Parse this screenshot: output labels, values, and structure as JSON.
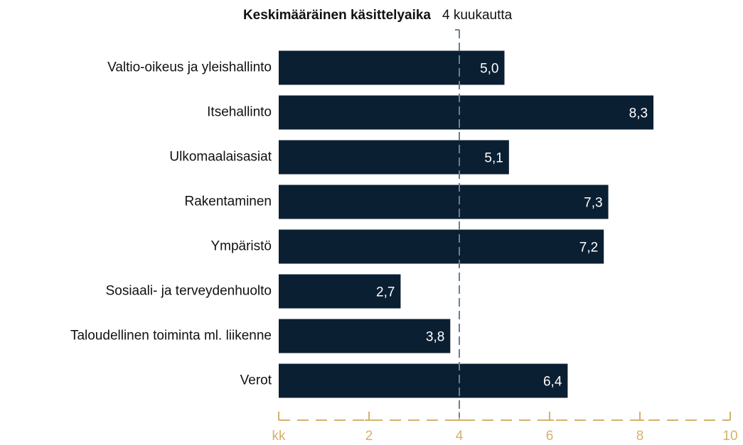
{
  "chart_data": {
    "type": "bar",
    "orientation": "horizontal",
    "categories": [
      "Valtio-oikeus ja yleishallinto",
      "Itsehallinto",
      "Ulkomaalaisasiat",
      "Rakentaminen",
      "Ympäristö",
      "Sosiaali- ja terveydenhuolto",
      "Taloudellinen toiminta ml. liikenne",
      "Verot"
    ],
    "values": [
      5.0,
      8.3,
      5.1,
      7.3,
      7.2,
      2.7,
      3.8,
      6.4
    ],
    "value_labels": [
      "5,0",
      "8,3",
      "5,1",
      "7,3",
      "7,2",
      "2,7",
      "3,8",
      "6,4"
    ],
    "color": "#0b1f33",
    "xlim": [
      0,
      10
    ],
    "xticks": [
      {
        "value": 0,
        "label": "kk"
      },
      2,
      4,
      6,
      8,
      10
    ],
    "axis_color": "#d4b26a",
    "reference_line": {
      "value": 4,
      "label": "Keskimääräinen käsittelyaika",
      "value_label": "4 kuukautta",
      "color": "#6b7f92"
    }
  }
}
